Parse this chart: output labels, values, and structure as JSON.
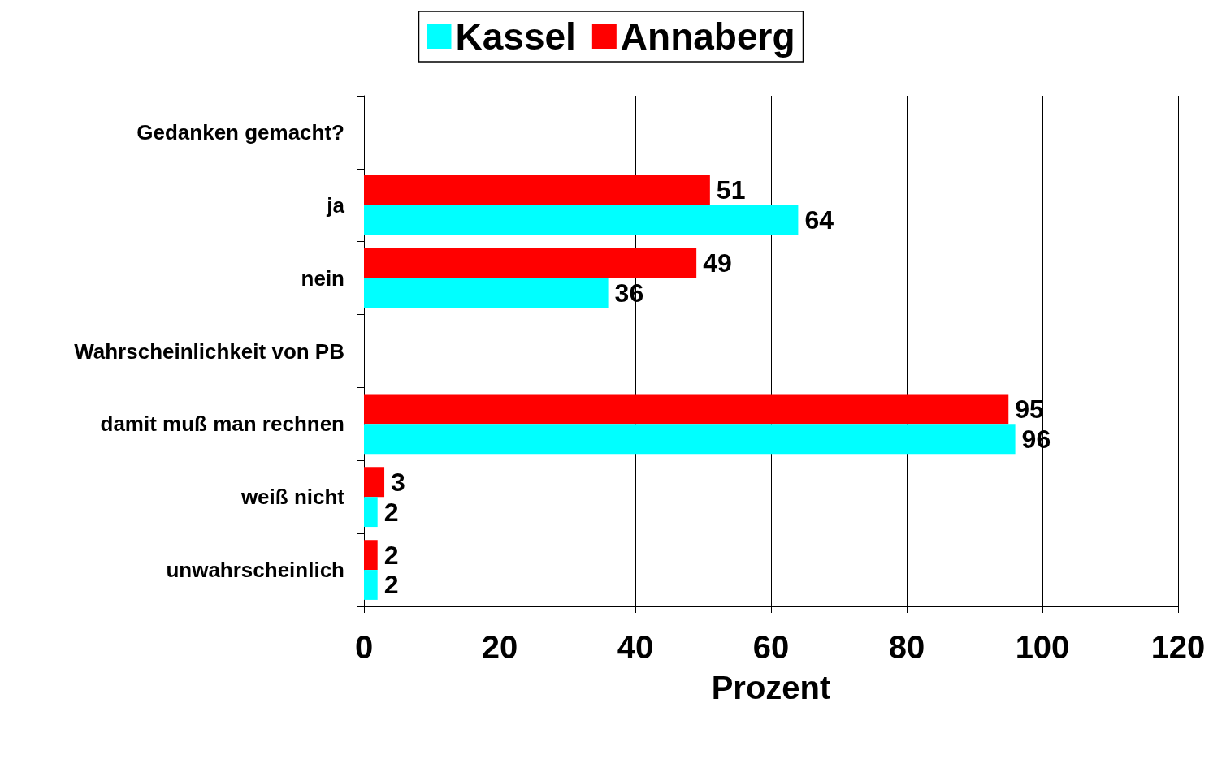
{
  "chart_data": {
    "type": "bar",
    "orientation": "horizontal",
    "xlabel": "Prozent",
    "categories": [
      "Gedanken gemacht?",
      "ja",
      "nein",
      "Wahrscheinlichkeit von PB",
      "damit muß man rechnen",
      "weiß nicht",
      "unwahrscheinlich"
    ],
    "series": [
      {
        "name": "Kassel",
        "color": "#00ffff",
        "values": [
          null,
          64,
          36,
          null,
          96,
          2,
          2
        ]
      },
      {
        "name": "Annaberg",
        "color": "#ff0000",
        "values": [
          null,
          51,
          49,
          null,
          95,
          3,
          2
        ]
      }
    ],
    "xlim": [
      0,
      120
    ],
    "xticks": [
      0,
      20,
      40,
      60,
      80,
      100,
      120
    ],
    "grid": "x",
    "legend": "top",
    "data_labels": true
  }
}
